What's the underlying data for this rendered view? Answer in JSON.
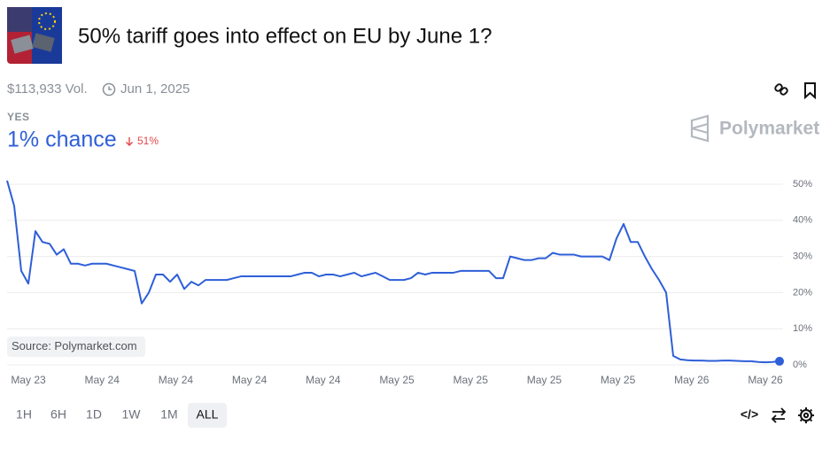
{
  "header": {
    "title": "50% tariff goes into effect on EU by June 1?",
    "volume": "$113,933 Vol.",
    "date": "Jun 1, 2025"
  },
  "outcome": "YES",
  "chance": "1% chance",
  "change": "51%",
  "brand": "Polymarket",
  "ranges": [
    "1H",
    "6H",
    "1D",
    "1W",
    "1M",
    "ALL"
  ],
  "selected_range_index": 5,
  "chart_data": {
    "type": "line",
    "source": "Source: Polymarket.com",
    "x_labels": [
      "May 23",
      "May 24",
      "May 24",
      "May 24",
      "May 24",
      "May 25",
      "May 25",
      "May 25",
      "May 25",
      "May 26",
      "May 26"
    ],
    "ylim": [
      0,
      50
    ],
    "yticks": [
      {
        "value": 0,
        "label": "0%"
      },
      {
        "value": 10,
        "label": "10%"
      },
      {
        "value": 20,
        "label": "20%"
      },
      {
        "value": 30,
        "label": "30%"
      },
      {
        "value": 40,
        "label": "40%"
      },
      {
        "value": 50,
        "label": "50%"
      }
    ],
    "grid": true,
    "series": [
      {
        "color": "#2e5fd8",
        "values": [
          51,
          44,
          26,
          22.5,
          37,
          34,
          33.5,
          30.5,
          32,
          28,
          28,
          27.5,
          28,
          28,
          28,
          27.5,
          27,
          26.5,
          26,
          17,
          20,
          25,
          25,
          23,
          25,
          21,
          23,
          22,
          23.5,
          23.5,
          23.5,
          23.5,
          24,
          24.5,
          24.5,
          24.5,
          24.5,
          24.5,
          24.5,
          24.5,
          24.5,
          25,
          25.5,
          25.5,
          24.5,
          25,
          25,
          24.5,
          25,
          25.5,
          24.5,
          25,
          25.5,
          24.5,
          23.5,
          23.5,
          23.5,
          24,
          25.5,
          25,
          25.5,
          25.5,
          25.5,
          25.5,
          26,
          26,
          26,
          26,
          26,
          24,
          24,
          30,
          29.5,
          29,
          29,
          29.5,
          29.5,
          31,
          30.5,
          30.5,
          30.5,
          30,
          30,
          30,
          30,
          29,
          35,
          39,
          34,
          34,
          30,
          26.5,
          23.5,
          20,
          2.5,
          1.5,
          1.3,
          1.2,
          1.2,
          1.1,
          1.1,
          1.2,
          1.2,
          1.1,
          1,
          1,
          0.8,
          0.7,
          0.8,
          1
        ]
      }
    ]
  }
}
